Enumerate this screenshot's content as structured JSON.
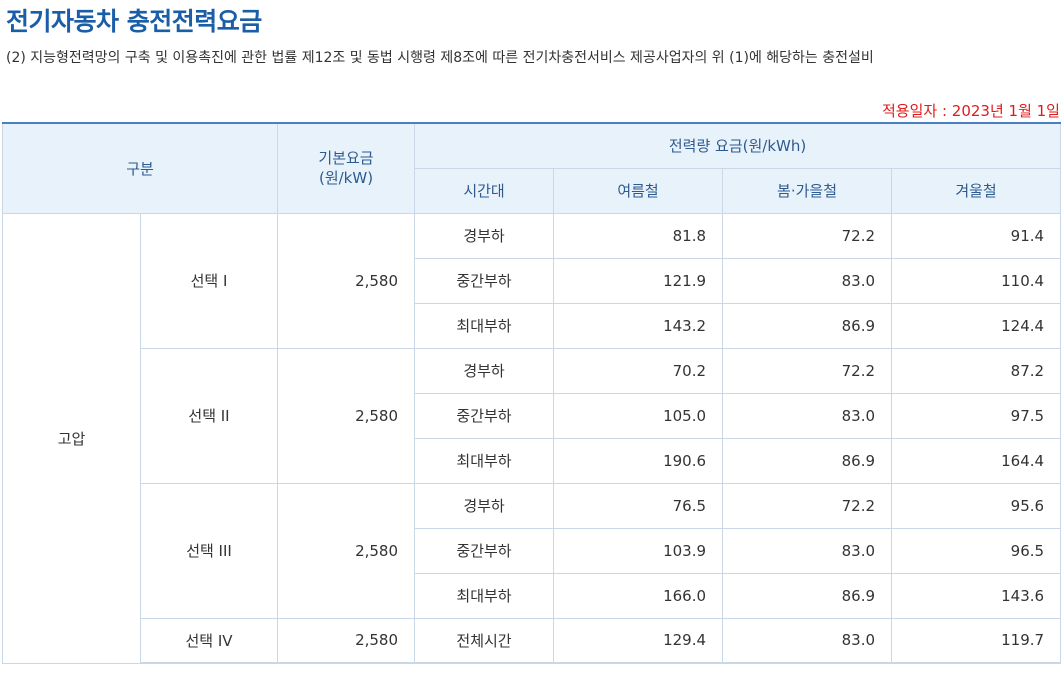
{
  "title": "전기자동차 충전전력요금",
  "description": "(2) 지능형전력망의 구축 및 이용촉진에 관한 법률 제12조 및 동법 시행령 제8조에 따른 전기차충전서비스 제공사업자의 위 (1)에 해당하는 충전설비",
  "effective_date": "적용일자 : 2023년 1월 1일",
  "table": {
    "headers": {
      "category": "구분",
      "basic_fee": "기본요금\n(원/kW)",
      "energy_fee": "전력량 요금(원/kWh)",
      "time_slot": "시간대",
      "summer": "여름철",
      "spring_fall": "봄·가을철",
      "winter": "겨울철"
    },
    "voltage": "고압",
    "options": [
      {
        "name": "선택 I",
        "basic_fee": "2,580",
        "rows": [
          {
            "slot": "경부하",
            "summer": "81.8",
            "spring_fall": "72.2",
            "winter": "91.4"
          },
          {
            "slot": "중간부하",
            "summer": "121.9",
            "spring_fall": "83.0",
            "winter": "110.4"
          },
          {
            "slot": "최대부하",
            "summer": "143.2",
            "spring_fall": "86.9",
            "winter": "124.4"
          }
        ]
      },
      {
        "name": "선택 II",
        "basic_fee": "2,580",
        "rows": [
          {
            "slot": "경부하",
            "summer": "70.2",
            "spring_fall": "72.2",
            "winter": "87.2"
          },
          {
            "slot": "중간부하",
            "summer": "105.0",
            "spring_fall": "83.0",
            "winter": "97.5"
          },
          {
            "slot": "최대부하",
            "summer": "190.6",
            "spring_fall": "86.9",
            "winter": "164.4"
          }
        ]
      },
      {
        "name": "선택 III",
        "basic_fee": "2,580",
        "rows": [
          {
            "slot": "경부하",
            "summer": "76.5",
            "spring_fall": "72.2",
            "winter": "95.6"
          },
          {
            "slot": "중간부하",
            "summer": "103.9",
            "spring_fall": "83.0",
            "winter": "96.5"
          },
          {
            "slot": "최대부하",
            "summer": "166.0",
            "spring_fall": "86.9",
            "winter": "143.6"
          }
        ]
      },
      {
        "name": "선택 IV",
        "basic_fee": "2,580",
        "rows": [
          {
            "slot": "전체시간",
            "summer": "129.4",
            "spring_fall": "83.0",
            "winter": "119.7"
          }
        ]
      }
    ]
  }
}
